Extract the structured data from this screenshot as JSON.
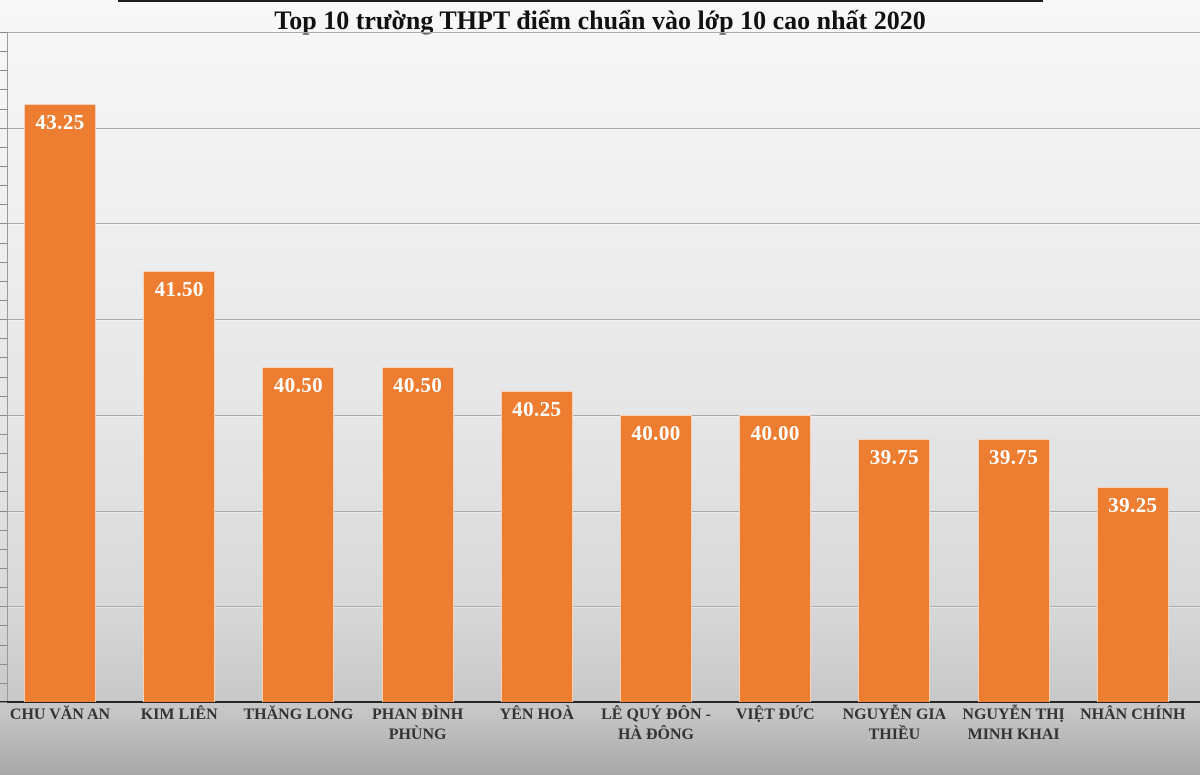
{
  "chart_data": {
    "type": "bar",
    "title": "Top 10 trường THPT điểm chuẩn vào lớp 10 cao nhất 2020",
    "categories": [
      "CHU VĂN AN",
      "KIM LIÊN",
      "THĂNG LONG",
      "PHAN ĐÌNH PHÙNG",
      "YÊN HOÀ",
      "LÊ QUÝ ĐÔN - HÀ ĐÔNG",
      "VIỆT ĐỨC",
      "NGUYỄN GIA THIỀU",
      "NGUYỄN THỊ MINH KHAI",
      "NHÂN CHÍNH"
    ],
    "values": [
      43.25,
      41.5,
      40.5,
      40.5,
      40.25,
      40.0,
      40.0,
      39.75,
      39.75,
      39.25
    ],
    "value_labels": [
      "43.25",
      "41.50",
      "40.50",
      "40.50",
      "40.25",
      "40.00",
      "40.00",
      "39.75",
      "39.75",
      "39.25"
    ],
    "xlabel": "",
    "ylabel": "",
    "ylim": [
      37,
      44
    ],
    "gridline_interval": 1,
    "minor_tick_interval": 0.2,
    "grid": "on",
    "legend": "none",
    "colors": {
      "bar_fill": "#ED7D31",
      "value_label_text": "#FFFFFF",
      "category_label_text": "#333333",
      "title_text": "#111111",
      "gridline": "#AAAAAA",
      "axis_line": "#262626"
    }
  }
}
